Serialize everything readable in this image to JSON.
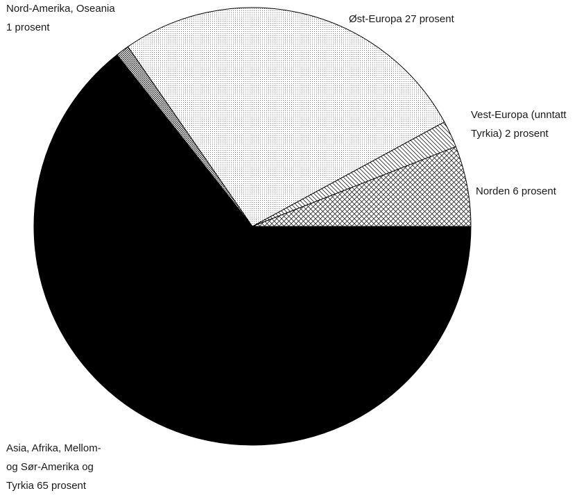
{
  "chart_data": {
    "type": "pie",
    "title": "",
    "slices": [
      {
        "id": "asia",
        "label_lines": [
          "Asia, Afrika, Mellom-",
          "og Sør-Amerika og",
          "Tyrkia 65 prosent"
        ],
        "value": 65,
        "fill": "solid"
      },
      {
        "id": "nordam",
        "label_lines": [
          "Nord-Amerika, Oseania",
          "1 prosent"
        ],
        "value": 1,
        "fill": "fine-hatch"
      },
      {
        "id": "osteuropa",
        "label_lines": [
          "Øst-Europa 27 prosent"
        ],
        "value": 27,
        "fill": "dots"
      },
      {
        "id": "vesteuropa",
        "label_lines": [
          "Vest-Europa (unntatt",
          "Tyrkia) 2 prosent"
        ],
        "value": 2,
        "fill": "diagonal-hatch"
      },
      {
        "id": "norden",
        "label_lines": [
          "Norden 6 prosent"
        ],
        "value": 6,
        "fill": "cross-hatch"
      }
    ]
  },
  "colors": {
    "ink": "#000000",
    "background": "#ffffff",
    "text": "#1a1a1a"
  }
}
